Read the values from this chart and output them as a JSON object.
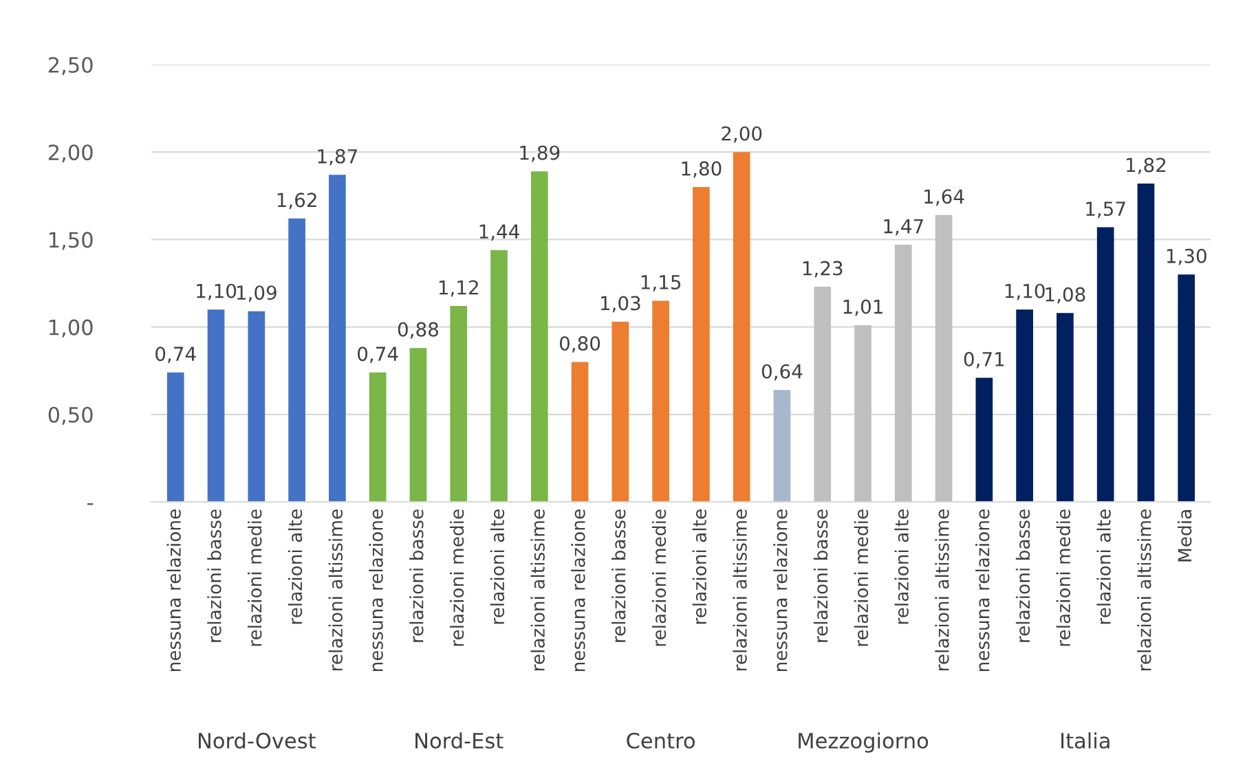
{
  "chart_data": {
    "type": "bar",
    "categories": [
      "nessuna relazione",
      "relazioni basse",
      "relazioni medie",
      "relazioni alte",
      "relazioni altissime",
      "nessuna relazione",
      "relazioni basse",
      "relazioni medie",
      "relazioni alte",
      "relazioni altissime",
      "nessuna relazione",
      "relazioni basse",
      "relazioni medie",
      "relazioni alte",
      "relazioni altissime",
      "nessuna relazione",
      "relazioni basse",
      "relazioni medie",
      "relazioni alte",
      "relazioni altissime",
      "nessuna relazione",
      "relazioni basse",
      "relazioni medie",
      "relazioni alte",
      "relazioni altissime",
      "Media"
    ],
    "series": [
      {
        "colors": [
          "#4472c4",
          "#4472c4",
          "#4472c4",
          "#4472c4",
          "#4472c4",
          null,
          null,
          null,
          null,
          null,
          null,
          null,
          null,
          null,
          null,
          null,
          null,
          null,
          null,
          null,
          null,
          null,
          null,
          null,
          null,
          null
        ],
        "values": [
          0.74,
          1.1,
          1.09,
          1.62,
          1.87,
          null,
          null,
          null,
          null,
          null,
          null,
          null,
          null,
          null,
          null,
          null,
          null,
          null,
          null,
          null,
          null,
          null,
          null,
          null,
          null,
          null
        ],
        "value_labels": [
          "0,74",
          "1,10",
          "1,09",
          "1,62",
          "1,87",
          null,
          null,
          null,
          null,
          null,
          null,
          null,
          null,
          null,
          null,
          null,
          null,
          null,
          null,
          null,
          null,
          null,
          null,
          null,
          null,
          null
        ]
      },
      {
        "colors": [
          null,
          null,
          null,
          null,
          null,
          "#7ab648",
          "#7ab648",
          "#7ab648",
          "#7ab648",
          "#7ab648",
          null,
          null,
          null,
          null,
          null,
          null,
          null,
          null,
          null,
          null,
          null,
          null,
          null,
          null,
          null,
          null
        ],
        "values": [
          null,
          null,
          null,
          null,
          null,
          0.74,
          0.88,
          1.12,
          1.44,
          1.89,
          null,
          null,
          null,
          null,
          null,
          null,
          null,
          null,
          null,
          null,
          null,
          null,
          null,
          null,
          null,
          null
        ],
        "value_labels": [
          null,
          null,
          null,
          null,
          null,
          "0,74",
          "0,88",
          "1,12",
          "1,44",
          "1,89",
          null,
          null,
          null,
          null,
          null,
          null,
          null,
          null,
          null,
          null,
          null,
          null,
          null,
          null,
          null,
          null
        ]
      },
      {
        "colors": [
          null,
          null,
          null,
          null,
          null,
          null,
          null,
          null,
          null,
          null,
          "#ed7d31",
          "#ed7d31",
          "#ed7d31",
          "#ed7d31",
          "#ed7d31",
          null,
          null,
          null,
          null,
          null,
          null,
          null,
          null,
          null,
          null,
          null
        ],
        "values": [
          null,
          null,
          null,
          null,
          null,
          null,
          null,
          null,
          null,
          null,
          0.8,
          1.03,
          1.15,
          1.8,
          2.0,
          null,
          null,
          null,
          null,
          null,
          null,
          null,
          null,
          null,
          null,
          null
        ],
        "value_labels": [
          null,
          null,
          null,
          null,
          null,
          null,
          null,
          null,
          null,
          null,
          "0,80",
          "1,03",
          "1,15",
          "1,80",
          "2,00",
          null,
          null,
          null,
          null,
          null,
          null,
          null,
          null,
          null,
          null,
          null
        ]
      },
      {
        "colors": [
          null,
          null,
          null,
          null,
          null,
          null,
          null,
          null,
          null,
          null,
          null,
          null,
          null,
          null,
          null,
          "#a9b7cc",
          "#bfbfbf",
          "#bfbfbf",
          "#bfbfbf",
          "#bfbfbf",
          null,
          null,
          null,
          null,
          null,
          null
        ],
        "values": [
          null,
          null,
          null,
          null,
          null,
          null,
          null,
          null,
          null,
          null,
          null,
          null,
          null,
          null,
          null,
          0.64,
          1.23,
          1.01,
          1.47,
          1.64,
          null,
          null,
          null,
          null,
          null,
          null
        ],
        "value_labels": [
          null,
          null,
          null,
          null,
          null,
          null,
          null,
          null,
          null,
          null,
          null,
          null,
          null,
          null,
          null,
          "0,64",
          "1,23",
          "1,01",
          "1,47",
          "1,64",
          null,
          null,
          null,
          null,
          null,
          null
        ]
      },
      {
        "colors": [
          null,
          null,
          null,
          null,
          null,
          null,
          null,
          null,
          null,
          null,
          null,
          null,
          null,
          null,
          null,
          null,
          null,
          null,
          null,
          null,
          "#002060",
          "#002060",
          "#002060",
          "#002060",
          "#002060",
          "#002060"
        ],
        "values": [
          null,
          null,
          null,
          null,
          null,
          null,
          null,
          null,
          null,
          null,
          null,
          null,
          null,
          null,
          null,
          null,
          null,
          null,
          null,
          null,
          0.71,
          1.1,
          1.08,
          1.57,
          1.82,
          1.3
        ],
        "value_labels": [
          null,
          null,
          null,
          null,
          null,
          null,
          null,
          null,
          null,
          null,
          null,
          null,
          null,
          null,
          null,
          null,
          null,
          null,
          null,
          null,
          "0,71",
          "1,10",
          "1,08",
          "1,57",
          "1,82",
          "1,30"
        ]
      }
    ],
    "ylim": [
      0,
      2.5
    ],
    "yticks": [
      {
        "value": 0,
        "label": "-"
      },
      {
        "value": 0.5,
        "label": "0,50"
      },
      {
        "value": 1.0,
        "label": "1,00"
      },
      {
        "value": 1.5,
        "label": "1,50"
      },
      {
        "value": 2.0,
        "label": "2,00"
      },
      {
        "value": 2.5,
        "label": "2,50"
      }
    ],
    "annotations": [
      "Nord-Ovest",
      "Nord-Est",
      "Centro",
      "Mezzogiorno",
      "Italia"
    ],
    "grid": "y",
    "legend": false
  }
}
